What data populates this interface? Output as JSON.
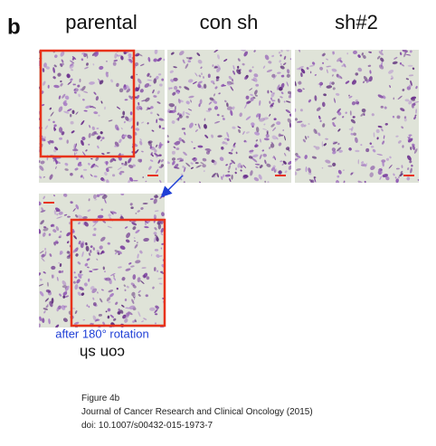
{
  "panel_label": "b",
  "column_labels": [
    "parental",
    "con sh",
    "sh#2"
  ],
  "rotation_note": "after 180° rotation",
  "rotated_label": "con sh",
  "caption": [
    "Figure 4b",
    "Journal of Cancer Research and Clinical Oncology (2015)",
    "doi: 10.1007/s00432-015-1973-7"
  ]
}
